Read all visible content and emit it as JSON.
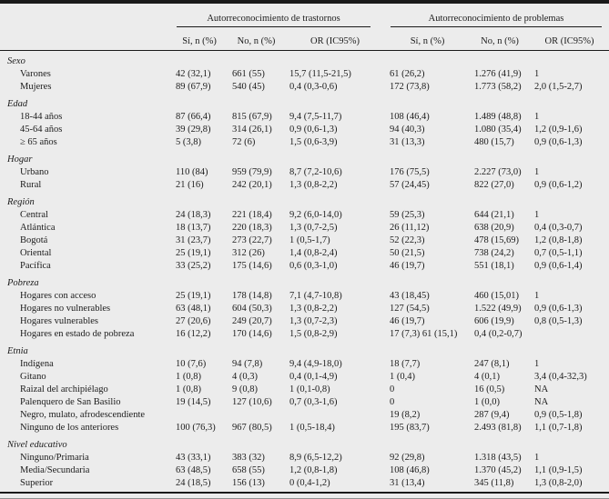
{
  "table": {
    "group_headers": [
      "Autorreconocimiento de trastornos",
      "Autorreconocimiento de problemas"
    ],
    "subheaders": [
      "Sí, n (%)",
      "No, n (%)",
      "OR (IC95%)",
      "Sí, n (%)",
      "No, n (%)",
      "OR (IC95%)"
    ],
    "sections": [
      {
        "title": "Sexo",
        "rows": [
          {
            "label": "Varones",
            "cells": [
              "42 (32,1)",
              "661 (55)",
              "15,7 (11,5-21,5)",
              "61 (26,2)",
              "1.276 (41,9)",
              "1"
            ]
          },
          {
            "label": "Mujeres",
            "cells": [
              "89 (67,9)",
              "540 (45)",
              "0,4 (0,3-0,6)",
              "172 (73,8)",
              "1.773 (58,2)",
              "2,0 (1,5-2,7)"
            ]
          }
        ]
      },
      {
        "title": "Edad",
        "rows": [
          {
            "label": "18-44 años",
            "cells": [
              "87 (66,4)",
              "815 (67,9)",
              "9,4 (7,5-11,7)",
              "108 (46,4)",
              "1.489 (48,8)",
              "1"
            ]
          },
          {
            "label": "45-64 años",
            "cells": [
              "39 (29,8)",
              "314 (26,1)",
              "0,9 (0,6-1,3)",
              "94 (40,3)",
              "1.080 (35,4)",
              "1,2 (0,9-1,6)"
            ]
          },
          {
            "label": "≥ 65 años",
            "cells": [
              "5 (3,8)",
              "72 (6)",
              "1,5 (0,6-3,9)",
              "31 (13,3)",
              "480 (15,7)",
              "0,9 (0,6-1,3)"
            ]
          }
        ]
      },
      {
        "title": "Hogar",
        "rows": [
          {
            "label": "Urbano",
            "cells": [
              "110 (84)",
              "959 (79,9)",
              "8,7 (7,2-10,6)",
              "176 (75,5)",
              "2.227 (73,0)",
              "1"
            ]
          },
          {
            "label": "Rural",
            "cells": [
              "21 (16)",
              "242 (20,1)",
              "1,3 (0,8-2,2)",
              "57 (24,45)",
              "822 (27,0)",
              "0,9 (0,6-1,2)"
            ]
          }
        ]
      },
      {
        "title": "Región",
        "rows": [
          {
            "label": "Central",
            "cells": [
              "24 (18,3)",
              "221 (18,4)",
              "9,2 (6,0-14,0)",
              "59 (25,3)",
              "644 (21,1)",
              "1"
            ]
          },
          {
            "label": "Atlántica",
            "cells": [
              "18 (13,7)",
              "220 (18,3)",
              "1,3 (0,7-2,5)",
              "26 (11,12)",
              "638 (20,9)",
              "0,4 (0,3-0,7)"
            ]
          },
          {
            "label": "Bogotá",
            "cells": [
              "31 (23,7)",
              "273 (22,7)",
              "1 (0,5-1,7)",
              "52 (22,3)",
              "478 (15,69)",
              "1,2 (0,8-1,8)"
            ]
          },
          {
            "label": "Oriental",
            "cells": [
              "25 (19,1)",
              "312 (26)",
              "1,4 (0,8-2,4)",
              "50 (21,5)",
              "738 (24,2)",
              "0,7 (0,5-1,1)"
            ]
          },
          {
            "label": "Pacífica",
            "cells": [
              "33 (25,2)",
              "175 (14,6)",
              "0,6 (0,3-1,0)",
              "46 (19,7)",
              "551 (18,1)",
              "0,9 (0,6-1,4)"
            ]
          }
        ]
      },
      {
        "title": "Pobreza",
        "rows": [
          {
            "label": "Hogares con acceso",
            "cells": [
              "25 (19,1)",
              "178 (14,8)",
              "7,1 (4,7-10,8)",
              "43 (18,45)",
              "460 (15,01)",
              "1"
            ]
          },
          {
            "label": "Hogares no vulnerables",
            "cells": [
              "63 (48,1)",
              "604 (50,3)",
              "1,3 (0,8-2,2)",
              "127 (54,5)",
              "1.522 (49,9)",
              "0,9 (0,6-1,3)"
            ]
          },
          {
            "label": "Hogares vulnerables",
            "cells": [
              "27 (20,6)",
              "249 (20,7)",
              "1,3 (0,7-2,3)",
              "46 (19,7)",
              "606 (19,9)",
              "0,8 (0,5-1,3)"
            ]
          },
          {
            "label": "Hogares en estado de pobreza",
            "cells": [
              "16 (12,2)",
              "170 (14,6)",
              "1,5 (0,8-2,9)",
              "17 (7,3) 61 (15,1)",
              "0,4 (0,2-0,7)",
              ""
            ]
          }
        ]
      },
      {
        "title": "Etnia",
        "rows": [
          {
            "label": "Indígena",
            "cells": [
              "10 (7,6)",
              "94 (7,8)",
              "9,4 (4,9-18,0)",
              "18 (7,7)",
              "247 (8,1)",
              "1"
            ]
          },
          {
            "label": "Gitano",
            "cells": [
              "1 (0,8)",
              "4 (0,3)",
              "0,4 (0,1-4,9)",
              "1 (0,4)",
              "4 (0,1)",
              "3,4 (0,4-32,3)"
            ]
          },
          {
            "label": "Raizal del archipiélago",
            "cells": [
              "1 (0,8)",
              "9 (0,8)",
              "1 (0,1-0,8)",
              "0",
              "16 (0,5)",
              "NA"
            ]
          },
          {
            "label": "Palenquero de San Basilio",
            "cells": [
              "19 (14,5)",
              "127 (10,6)",
              "0,7 (0,3-1,6)",
              "0",
              "1 (0,0)",
              "NA"
            ]
          },
          {
            "label": "Negro, mulato, afrodescendiente",
            "cells": [
              "",
              "",
              "",
              "19 (8,2)",
              "287 (9,4)",
              "0,9 (0,5-1,8)"
            ]
          },
          {
            "label": "Ninguno de los anteriores",
            "cells": [
              "100 (76,3)",
              "967 (80,5)",
              "1 (0,5-18,4)",
              "195 (83,7)",
              "2.493 (81,8)",
              "1,1 (0,7-1,8)"
            ]
          }
        ]
      },
      {
        "title": "Nivel educativo",
        "rows": [
          {
            "label": "Ninguno/Primaria",
            "cells": [
              "43 (33,1)",
              "383 (32)",
              "8,9 (6,5-12,2)",
              "92 (29,8)",
              "1.318 (43,5)",
              "1"
            ]
          },
          {
            "label": "Media/Secundaria",
            "cells": [
              "63 (48,5)",
              "658 (55)",
              "1,2 (0,8-1,8)",
              "108 (46,8)",
              "1.370 (45,2)",
              "1,1 (0,9-1,5)"
            ]
          },
          {
            "label": "Superior",
            "cells": [
              "24 (18,5)",
              "156 (13)",
              "0 (0,4-1,2)",
              "31 (13,4)",
              "345 (11,8)",
              "1,3 (0,8-2,0)"
            ]
          }
        ]
      }
    ]
  }
}
